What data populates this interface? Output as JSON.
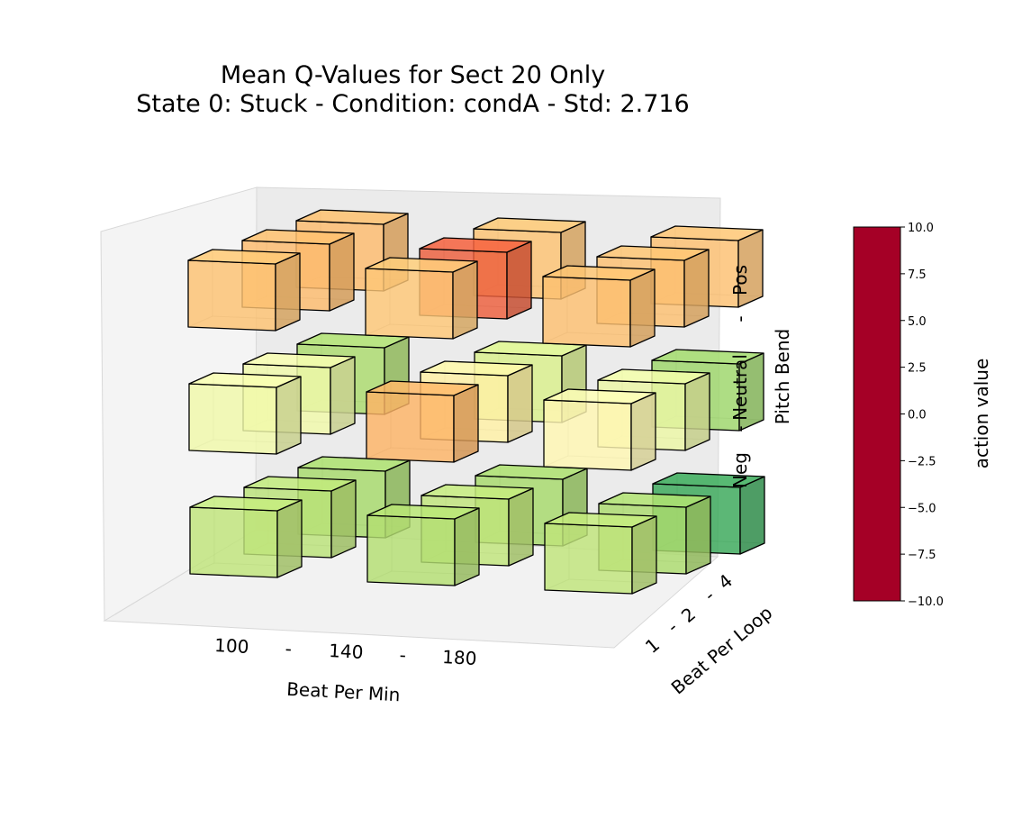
{
  "chart_data": {
    "type": "bar3d",
    "title": "Mean Q-Values for Sect 20 Only",
    "subtitle": "State 0: Stuck  -  Condition: condA  -  Std: 2.716",
    "xlabel": "Beat Per Min",
    "ylabel": "Beat Per Loop",
    "zlabel": "Pitch Bend",
    "x_ticks": [
      "100",
      "-",
      "140",
      "-",
      "180"
    ],
    "y_ticks": [
      "1",
      "-",
      "2",
      "-",
      "4"
    ],
    "z_ticks": [
      "Neg",
      "-",
      "Neutral",
      "-",
      "Pos"
    ],
    "x_categories": [
      "100",
      "140",
      "180"
    ],
    "y_categories": [
      "1",
      "2",
      "4"
    ],
    "z_categories": [
      "Neg",
      "Neutral",
      "Pos"
    ],
    "colorbar": {
      "label": "action value",
      "colormap": "RdYlGn",
      "range": [
        -10,
        10
      ],
      "ticks": [
        "10.0",
        "7.5",
        "5.0",
        "2.5",
        "0.0",
        "−2.5",
        "−5.0",
        "−7.5",
        "−10.0"
      ]
    },
    "cells": [
      {
        "bpm": "100",
        "loop": "1",
        "pitch": "Neg",
        "value": 3.0
      },
      {
        "bpm": "100",
        "loop": "2",
        "pitch": "Neg",
        "value": 3.2
      },
      {
        "bpm": "100",
        "loop": "4",
        "pitch": "Neg",
        "value": 4.0
      },
      {
        "bpm": "140",
        "loop": "1",
        "pitch": "Neg",
        "value": 3.5
      },
      {
        "bpm": "140",
        "loop": "2",
        "pitch": "Neg",
        "value": 3.0
      },
      {
        "bpm": "140",
        "loop": "4",
        "pitch": "Neg",
        "value": 4.0
      },
      {
        "bpm": "180",
        "loop": "1",
        "pitch": "Neg",
        "value": 3.0
      },
      {
        "bpm": "180",
        "loop": "2",
        "pitch": "Neg",
        "value": 3.8
      },
      {
        "bpm": "180",
        "loop": "4",
        "pitch": "Neg",
        "value": 7.2
      },
      {
        "bpm": "100",
        "loop": "1",
        "pitch": "Neutral",
        "value": 0.8
      },
      {
        "bpm": "100",
        "loop": "2",
        "pitch": "Neutral",
        "value": 0.8
      },
      {
        "bpm": "100",
        "loop": "4",
        "pitch": "Neutral",
        "value": 3.8
      },
      {
        "bpm": "140",
        "loop": "1",
        "pitch": "Neutral",
        "value": -3.8
      },
      {
        "bpm": "140",
        "loop": "2",
        "pitch": "Neutral",
        "value": -1.0
      },
      {
        "bpm": "140",
        "loop": "4",
        "pitch": "Neutral",
        "value": 2.0
      },
      {
        "bpm": "180",
        "loop": "1",
        "pitch": "Neutral",
        "value": -0.5
      },
      {
        "bpm": "180",
        "loop": "2",
        "pitch": "Neutral",
        "value": 1.0
      },
      {
        "bpm": "180",
        "loop": "4",
        "pitch": "Neutral",
        "value": 4.3
      },
      {
        "bpm": "100",
        "loop": "1",
        "pitch": "Pos",
        "value": -3.2
      },
      {
        "bpm": "100",
        "loop": "2",
        "pitch": "Pos",
        "value": -3.5
      },
      {
        "bpm": "100",
        "loop": "4",
        "pitch": "Pos",
        "value": -3.5
      },
      {
        "bpm": "140",
        "loop": "1",
        "pitch": "Pos",
        "value": -3.0
      },
      {
        "bpm": "140",
        "loop": "2",
        "pitch": "Pos",
        "value": -6.5
      },
      {
        "bpm": "140",
        "loop": "4",
        "pitch": "Pos",
        "value": -3.2
      },
      {
        "bpm": "180",
        "loop": "1",
        "pitch": "Pos",
        "value": -3.3
      },
      {
        "bpm": "180",
        "loop": "2",
        "pitch": "Pos",
        "value": -3.3
      },
      {
        "bpm": "180",
        "loop": "4",
        "pitch": "Pos",
        "value": -3.3
      }
    ]
  }
}
